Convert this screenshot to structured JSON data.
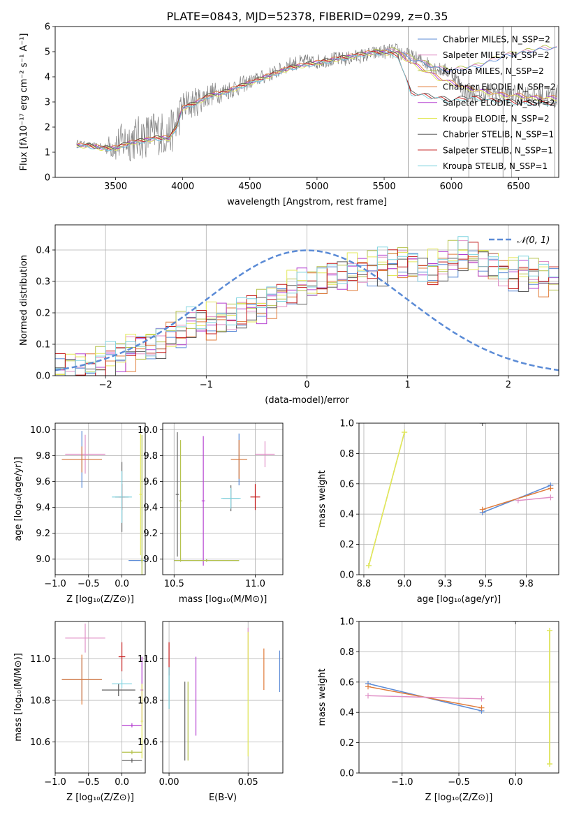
{
  "figure": {
    "title": "PLATE=0843, MJD=52378, FIBERID=0299, z=0.35"
  },
  "palette": {
    "chabrier_miles": "#5b8bd6",
    "salpeter_miles": "#e08fc6",
    "kroupa_miles": "#b5c24c",
    "chabrier_elodie": "#e07b39",
    "salpeter_elodie": "#b43fd1",
    "kroupa_elodie": "#e3e85a",
    "chabrier_stelib": "#5c5c5c",
    "salpeter_stelib": "#c41a1a",
    "kroupa_stelib": "#7fd3df",
    "data": "#808080",
    "normal": "#5b8bd6"
  },
  "chart_data": [
    {
      "id": "spectrum",
      "type": "line",
      "xlabel": "wavelength [Angstrom, rest frame]",
      "ylabel": "Flux [fλ10⁻¹⁷ erg cm⁻² s⁻¹ A⁻¹]",
      "xlim": [
        3050,
        6800
      ],
      "ylim": [
        0,
        6
      ],
      "xticks": [
        3500,
        4000,
        4500,
        5000,
        5500,
        6000,
        6500
      ],
      "yticks": [
        0,
        1,
        2,
        3,
        4,
        5,
        6
      ],
      "grid": false,
      "legend_position": "top-right",
      "legend": [
        "Chabrier MILES, N_SSP=2",
        "Salpeter MILES, N_SSP=2",
        "Kroupa MILES, N_SSP=2",
        "Chabrier ELODIE, N_SSP=2",
        "Salpeter ELODIE, N_SSP=2",
        "Kroupa ELODIE, N_SSP=2",
        "Chabrier STELIB, N_SSP=1",
        "Salpeter STELIB, N_SSP=1",
        "Kroupa STELIB, N_SSP=1"
      ],
      "observed": {
        "x": [
          3200,
          3300,
          3400,
          3500,
          3600,
          3700,
          3800,
          3900,
          3950,
          4000,
          4100,
          4200,
          4300,
          4400,
          4500,
          4600,
          4700,
          4800,
          4900,
          5000,
          5100,
          5200,
          5300,
          5400,
          5500,
          5600,
          5700,
          5800,
          5900,
          6000,
          6100,
          6200,
          6300,
          6400,
          6500,
          6600,
          6700
        ],
        "y": [
          1.4,
          1.3,
          1.2,
          1.3,
          1.5,
          1.6,
          1.8,
          1.7,
          2.1,
          2.8,
          3.0,
          3.3,
          3.4,
          3.6,
          3.8,
          4.0,
          4.2,
          4.5,
          4.6,
          4.6,
          4.7,
          4.7,
          4.8,
          4.9,
          5.0,
          5.0,
          4.8,
          4.6,
          4.3,
          4.2,
          3.4,
          3.3,
          3.4,
          3.3,
          3.3,
          3.3,
          3.2
        ],
        "noise": [
          0.1,
          0.1,
          0.15,
          0.7,
          0.9,
          0.9,
          0.9,
          0.9,
          0.9,
          0.7,
          0.6,
          0.5,
          0.4,
          0.4,
          0.3,
          0.3,
          0.3,
          0.3,
          0.3,
          0.3,
          0.3,
          0.3,
          0.3,
          0.3,
          0.3,
          0.35,
          0.3,
          0.3,
          0.3,
          0.3,
          0.4,
          0.4,
          0.4,
          0.4,
          0.4,
          0.4,
          0.5
        ]
      },
      "models": {
        "x": [
          3200,
          3300,
          3400,
          3500,
          3600,
          3700,
          3800,
          3900,
          3950,
          4000,
          4100,
          4200,
          4300,
          4400,
          4500,
          4600,
          4700,
          4800,
          4900,
          5000,
          5100,
          5200,
          5300,
          5400,
          5500,
          5600,
          5700,
          5800,
          5900,
          6000,
          6100,
          6200,
          6300,
          6400,
          6500,
          6600,
          6700
        ],
        "miles_type": [
          1.3,
          1.3,
          1.2,
          1.2,
          1.4,
          1.5,
          1.6,
          1.6,
          2.0,
          2.8,
          3.0,
          3.3,
          3.4,
          3.6,
          3.8,
          4.0,
          4.2,
          4.4,
          4.5,
          4.6,
          4.7,
          4.8,
          4.9,
          5.0,
          5.1,
          5.1,
          4.8,
          4.6,
          4.4,
          4.3,
          4.4,
          4.5,
          4.7,
          4.9,
          5.0,
          5.1,
          5.2
        ],
        "elodie_type": [
          1.3,
          1.3,
          1.2,
          1.2,
          1.4,
          1.5,
          1.6,
          1.6,
          2.0,
          2.8,
          3.0,
          3.3,
          3.4,
          3.6,
          3.8,
          4.0,
          4.2,
          4.4,
          4.5,
          4.6,
          4.7,
          4.8,
          4.9,
          5.0,
          5.0,
          5.0,
          4.6,
          4.3,
          4.0,
          3.8,
          3.6,
          3.5,
          3.4,
          3.3,
          3.3,
          3.2,
          3.2
        ],
        "stelib_type": [
          1.3,
          1.3,
          1.2,
          1.2,
          1.4,
          1.5,
          1.6,
          1.6,
          2.0,
          2.8,
          3.0,
          3.3,
          3.4,
          3.6,
          3.8,
          4.0,
          4.2,
          4.4,
          4.5,
          4.6,
          4.7,
          4.8,
          4.9,
          5.0,
          5.0,
          4.9,
          3.4,
          3.3,
          3.2,
          3.1,
          3.2,
          3.2,
          3.1,
          3.1,
          3.0,
          3.0,
          3.0
        ]
      }
    },
    {
      "id": "residual-histogram",
      "type": "line",
      "xlabel": "(data-model)/error",
      "ylabel": "Normed distribution",
      "xlim": [
        -2.5,
        2.5
      ],
      "ylim": [
        0,
        0.48
      ],
      "xticks": [
        -2,
        -1,
        0,
        1,
        2
      ],
      "yticks": [
        0.0,
        0.1,
        0.2,
        0.3,
        0.4
      ],
      "grid": true,
      "legend_position": "top-right",
      "legend": [
        "𝒩(0, 1)"
      ],
      "bin_edges_start": -2.5,
      "bin_width": 0.1,
      "envelope": [
        0.02,
        0.02,
        0.02,
        0.03,
        0.04,
        0.05,
        0.06,
        0.08,
        0.09,
        0.1,
        0.11,
        0.13,
        0.14,
        0.16,
        0.17,
        0.17,
        0.18,
        0.19,
        0.2,
        0.21,
        0.22,
        0.24,
        0.26,
        0.28,
        0.29,
        0.29,
        0.3,
        0.31,
        0.32,
        0.33,
        0.34,
        0.35,
        0.35,
        0.36,
        0.36,
        0.35,
        0.34,
        0.34,
        0.35,
        0.37,
        0.38,
        0.37,
        0.36,
        0.35,
        0.34,
        0.33,
        0.33,
        0.32,
        0.31,
        0.3
      ]
    },
    {
      "id": "age-vs-Z",
      "type": "scatter",
      "xlabel": "Z [log₁₀(Z/Z⊙)]",
      "ylabel": "age  [log₁₀(age/yr)]",
      "xlim": [
        -1.0,
        0.35
      ],
      "ylim": [
        8.88,
        10.05
      ],
      "xticks": [
        -1.0,
        -0.5,
        0.0
      ],
      "yticks": [
        9.0,
        9.2,
        9.4,
        9.6,
        9.8,
        10.0
      ],
      "grid": true,
      "points": [
        {
          "series": "chabrier_miles",
          "x": -0.6,
          "y": 9.77,
          "xerr": 0.3,
          "yerr": 0.22
        },
        {
          "series": "salpeter_miles",
          "x": -0.55,
          "y": 9.81,
          "xerr": 0.3,
          "yerr": 0.15
        },
        {
          "series": "chabrier_elodie",
          "x": -0.6,
          "y": 9.77,
          "xerr": 0.3,
          "yerr": 0.1
        },
        {
          "series": "chabrier_stelib",
          "x": 0.0,
          "y": 9.48,
          "xerr": 0.1,
          "yerr": 0.27
        },
        {
          "series": "salpeter_stelib",
          "x": 0.0,
          "y": 9.48,
          "xerr": 0.05,
          "yerr": 0.1
        },
        {
          "series": "kroupa_stelib",
          "x": 0.0,
          "y": 9.48,
          "xerr": 0.15,
          "yerr": 0.2
        },
        {
          "series": "chabrier_miles",
          "x": 0.3,
          "y": 8.99,
          "xerr": 0.2,
          "yerr": 0.02
        },
        {
          "series": "kroupa_miles",
          "x": 0.3,
          "y": 8.99,
          "xerr": 0.02,
          "yerr": 0.97
        },
        {
          "series": "kroupa_elodie",
          "x": 0.28,
          "y": 9.5,
          "xerr": 0.02,
          "yerr": 0.47
        }
      ]
    },
    {
      "id": "age-vs-mass",
      "type": "scatter",
      "xlabel": "mass [log₁₀(M/M⊙)]",
      "ylabel": "",
      "xlim": [
        10.43,
        11.17
      ],
      "ylim": [
        8.88,
        10.05
      ],
      "xticks": [
        10.5,
        11.0
      ],
      "yticks": [
        9.0,
        9.2,
        9.4,
        9.6,
        9.8,
        10.0
      ],
      "grid": true,
      "points": [
        {
          "series": "chabrier_miles",
          "x": 10.9,
          "y": 9.77,
          "xerr": 0.05,
          "yerr": 0.2
        },
        {
          "series": "salpeter_miles",
          "x": 11.06,
          "y": 9.81,
          "xerr": 0.06,
          "yerr": 0.1
        },
        {
          "series": "chabrier_elodie",
          "x": 10.9,
          "y": 9.77,
          "xerr": 0.05,
          "yerr": 0.15
        },
        {
          "series": "chabrier_stelib",
          "x": 10.85,
          "y": 9.47,
          "xerr": 0.05,
          "yerr": 0.1
        },
        {
          "series": "salpeter_stelib",
          "x": 11.0,
          "y": 9.48,
          "xerr": 0.03,
          "yerr": 0.1
        },
        {
          "series": "kroupa_stelib",
          "x": 10.85,
          "y": 9.47,
          "xerr": 0.06,
          "yerr": 0.08
        },
        {
          "series": "chabrier_stelib",
          "x": 10.52,
          "y": 9.5,
          "xerr": 0.01,
          "yerr": 0.48
        },
        {
          "series": "kroupa_miles",
          "x": 10.54,
          "y": 9.45,
          "xerr": 0.01,
          "yerr": 0.47
        },
        {
          "series": "salpeter_elodie",
          "x": 10.68,
          "y": 9.45,
          "xerr": 0.01,
          "yerr": 0.5
        },
        {
          "series": "chabrier_miles",
          "x": 10.7,
          "y": 8.99,
          "xerr": 0.2,
          "yerr": 0.01
        },
        {
          "series": "kroupa_miles",
          "x": 10.7,
          "y": 8.99,
          "xerr": 0.2,
          "yerr": 0.01
        }
      ]
    },
    {
      "id": "weight-vs-age",
      "type": "line",
      "xlabel": "age  [log₁₀(age/yr)]",
      "ylabel": "mass weight",
      "xlim": [
        8.72,
        9.95
      ],
      "ylim": [
        0,
        1
      ],
      "xticks": [
        8.75,
        9.0,
        9.25,
        9.5,
        9.75
      ],
      "yticks": [
        0.0,
        0.2,
        0.4,
        0.6,
        0.8,
        1.0
      ],
      "grid": true,
      "series": [
        {
          "series": "kroupa_miles",
          "x": [
            8.78,
            9.0
          ],
          "y": [
            0.06,
            0.94
          ]
        },
        {
          "series": "kroupa_elodie",
          "x": [
            8.78,
            9.0
          ],
          "y": [
            0.06,
            0.94
          ]
        },
        {
          "series": "chabrier_miles",
          "x": [
            9.48,
            9.9
          ],
          "y": [
            0.41,
            0.59
          ]
        },
        {
          "series": "chabrier_elodie",
          "x": [
            9.48,
            9.9
          ],
          "y": [
            0.43,
            0.57
          ]
        },
        {
          "series": "salpeter_miles",
          "x": [
            9.7,
            9.9
          ],
          "y": [
            0.49,
            0.51
          ]
        },
        {
          "series": "chabrier_stelib",
          "x": [
            9.48
          ],
          "y": [
            1.0
          ]
        }
      ]
    },
    {
      "id": "mass-vs-Z",
      "type": "scatter",
      "xlabel": "Z [log₁₀(Z/Z⊙)]",
      "ylabel": "mass [log₁₀(M/M⊙)]",
      "xlim": [
        -1.0,
        0.35
      ],
      "ylim": [
        10.45,
        11.18
      ],
      "xticks": [
        -1.0,
        -0.5,
        0.0
      ],
      "yticks": [
        10.6,
        10.8,
        11.0
      ],
      "grid": true,
      "points": [
        {
          "series": "chabrier_miles",
          "x": -0.6,
          "y": 10.9,
          "xerr": 0.3,
          "yerr": 0.1
        },
        {
          "series": "salpeter_miles",
          "x": -0.55,
          "y": 11.1,
          "xerr": 0.3,
          "yerr": 0.07
        },
        {
          "series": "chabrier_elodie",
          "x": -0.6,
          "y": 10.9,
          "xerr": 0.3,
          "yerr": 0.12
        },
        {
          "series": "chabrier_stelib",
          "x": -0.05,
          "y": 10.85,
          "xerr": 0.25,
          "yerr": 0.03
        },
        {
          "series": "kroupa_stelib",
          "x": 0.0,
          "y": 10.88,
          "xerr": 0.15,
          "yerr": 0.02
        },
        {
          "series": "salpeter_stelib",
          "x": 0.0,
          "y": 11.01,
          "xerr": 0.05,
          "yerr": 0.07
        },
        {
          "series": "salpeter_elodie",
          "x": 0.3,
          "y": 10.85,
          "xerr": 0.02,
          "yerr": 0.16
        },
        {
          "series": "salpeter_elodie",
          "x": 0.15,
          "y": 10.68,
          "xerr": 0.15,
          "yerr": 0.01
        },
        {
          "series": "kroupa_elodie",
          "x": 0.3,
          "y": 10.7,
          "xerr": 0.02,
          "yerr": 0.18
        },
        {
          "series": "kroupa_miles",
          "x": 0.15,
          "y": 10.55,
          "xerr": 0.15,
          "yerr": 0.01
        },
        {
          "series": "chabrier_stelib",
          "x": 0.15,
          "y": 10.51,
          "xerr": 0.15,
          "yerr": 0.01
        }
      ]
    },
    {
      "id": "mass-vs-ebv",
      "type": "scatter",
      "xlabel": "E(B-V)",
      "ylabel": "",
      "xlim": [
        -0.004,
        0.072
      ],
      "ylim": [
        10.45,
        11.18
      ],
      "xticks": [
        0.0,
        0.05
      ],
      "yticks": [
        10.6,
        10.8,
        11.0
      ],
      "grid": true,
      "points": [
        {
          "series": "salpeter_stelib",
          "x": 0.0,
          "y": 11.0,
          "xerr": 0.0,
          "yerr": 0.08
        },
        {
          "series": "chabrier_stelib",
          "x": 0.0,
          "y": 10.86,
          "xerr": 0.0,
          "yerr": 0.1
        },
        {
          "series": "kroupa_stelib",
          "x": 0.0,
          "y": 10.86,
          "xerr": 0.0,
          "yerr": 0.1
        },
        {
          "series": "chabrier_stelib",
          "x": 0.01,
          "y": 10.7,
          "xerr": 0.0,
          "yerr": 0.19
        },
        {
          "series": "kroupa_miles",
          "x": 0.012,
          "y": 10.7,
          "xerr": 0.0,
          "yerr": 0.19
        },
        {
          "series": "salpeter_elodie",
          "x": 0.017,
          "y": 10.82,
          "xerr": 0.0,
          "yerr": 0.19
        },
        {
          "series": "salpeter_miles",
          "x": 0.05,
          "y": 11.0,
          "xerr": 0.0,
          "yerr": 0.15
        },
        {
          "series": "kroupa_elodie",
          "x": 0.05,
          "y": 10.83,
          "xerr": 0.0,
          "yerr": 0.3
        },
        {
          "series": "chabrier_elodie",
          "x": 0.06,
          "y": 10.95,
          "xerr": 0.0,
          "yerr": 0.1
        },
        {
          "series": "chabrier_miles",
          "x": 0.07,
          "y": 10.94,
          "xerr": 0.0,
          "yerr": 0.1
        }
      ]
    },
    {
      "id": "weight-vs-Z",
      "type": "line",
      "xlabel": "Z [log₁₀(Z/Z⊙)]",
      "ylabel": "mass weight",
      "xlim": [
        -1.38,
        0.38
      ],
      "ylim": [
        0,
        1
      ],
      "xticks": [
        -1.0,
        -0.5,
        0.0
      ],
      "yticks": [
        0.0,
        0.2,
        0.4,
        0.6,
        0.8,
        1.0
      ],
      "grid": true,
      "series": [
        {
          "series": "chabrier_miles",
          "x": [
            -1.3,
            -0.3
          ],
          "y": [
            0.59,
            0.41
          ]
        },
        {
          "series": "chabrier_elodie",
          "x": [
            -1.3,
            -0.3
          ],
          "y": [
            0.57,
            0.43
          ]
        },
        {
          "series": "salpeter_miles",
          "x": [
            -1.3,
            -0.3
          ],
          "y": [
            0.51,
            0.49
          ]
        },
        {
          "series": "kroupa_miles",
          "x": [
            0.3,
            0.3
          ],
          "y": [
            0.06,
            0.94
          ]
        },
        {
          "series": "kroupa_elodie",
          "x": [
            0.3,
            0.3
          ],
          "y": [
            0.06,
            0.94
          ]
        },
        {
          "series": "chabrier_stelib",
          "x": [
            0.0
          ],
          "y": [
            1.0
          ]
        }
      ]
    }
  ]
}
